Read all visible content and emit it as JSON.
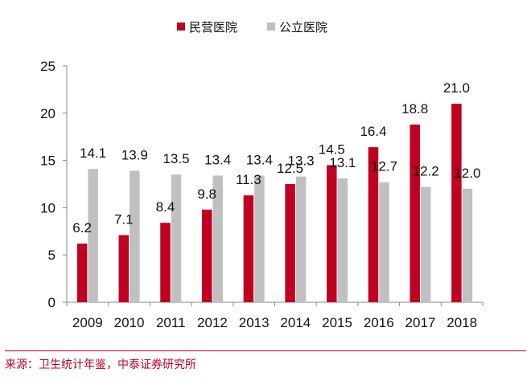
{
  "chart_data": {
    "type": "bar",
    "categories": [
      "2009",
      "2010",
      "2011",
      "2012",
      "2013",
      "2014",
      "2015",
      "2016",
      "2017",
      "2018"
    ],
    "series": [
      {
        "name": "民营医院",
        "values": [
          6.2,
          7.1,
          8.4,
          9.8,
          11.3,
          12.5,
          14.5,
          16.4,
          18.8,
          21.0
        ],
        "color": "#c00020"
      },
      {
        "name": "公立医院",
        "values": [
          14.1,
          13.9,
          13.5,
          13.4,
          13.4,
          13.3,
          13.1,
          12.7,
          12.2,
          12.0
        ],
        "color": "#c0c0c0"
      }
    ],
    "data_labels": {
      "民营医院": [
        "6.2",
        "7.1",
        "8.4",
        "9.8",
        "11.3",
        "12.5",
        "14.5",
        "16.4",
        "18.8",
        "21.0"
      ],
      "公立医院": [
        "14.1",
        "13.9",
        "13.5",
        "13.4",
        "13.4",
        "13.3",
        "13.1",
        "12.7",
        "12.2",
        "12.0"
      ]
    },
    "y_ticks": [
      "0",
      "5",
      "10",
      "15",
      "20",
      "25"
    ],
    "ylim": [
      0,
      25
    ],
    "grid": false,
    "legend_position": "top-center"
  },
  "source": "来源：卫生统计年鉴，中泰证券研究所"
}
